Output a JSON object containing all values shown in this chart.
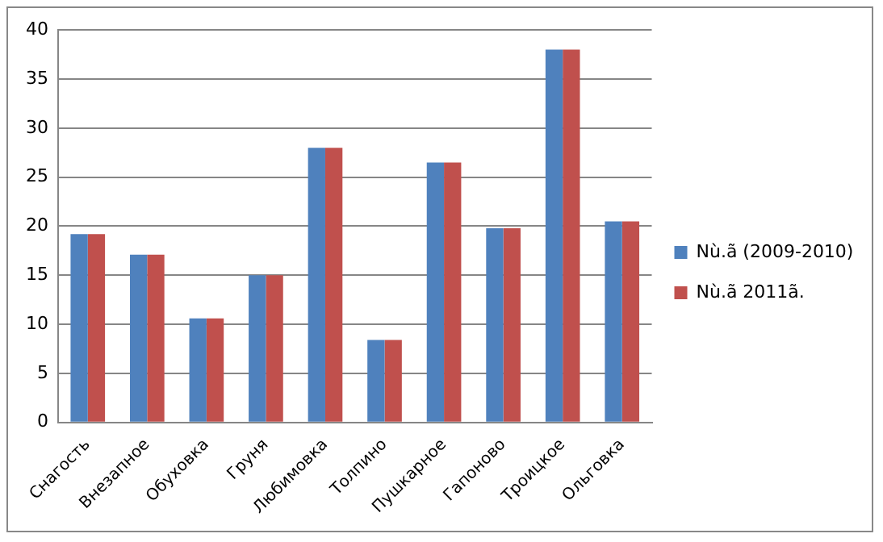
{
  "chart_data": {
    "type": "bar",
    "categories": [
      "Снагость",
      "Внезапное",
      "Обуховка",
      "Груня",
      "Любимовка",
      "Толпино",
      "Пушкарное",
      "Гапоново",
      "Троицкое",
      "Ольговка"
    ],
    "series": [
      {
        "name": "Nù.ã (2009-2010)",
        "color": "#4f81bd",
        "values": [
          19.2,
          17.1,
          10.6,
          15.0,
          28.0,
          8.4,
          26.5,
          19.8,
          38.0,
          20.5
        ]
      },
      {
        "name": "Nù.ã 2011ã.",
        "color": "#c0504d",
        "values": [
          19.2,
          17.1,
          10.6,
          15.0,
          28.0,
          8.4,
          26.5,
          19.8,
          38.0,
          20.5
        ]
      }
    ],
    "ylim": [
      0,
      40
    ],
    "yticks": [
      0,
      5,
      10,
      15,
      20,
      25,
      30,
      35,
      40
    ],
    "grid": "y",
    "legend": "right"
  }
}
